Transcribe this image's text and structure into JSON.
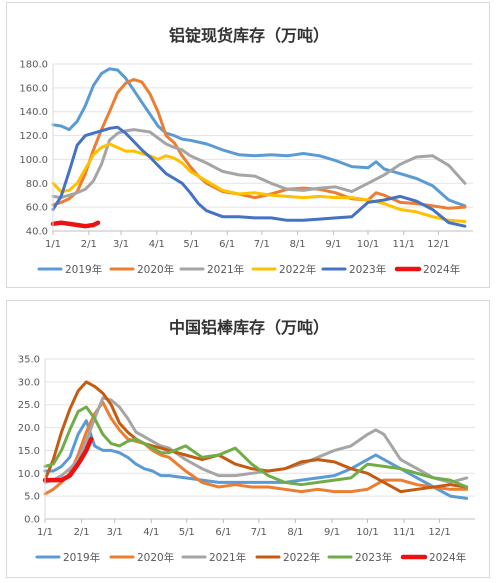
{
  "colors": {
    "2019": "#5b9bd5",
    "2020": "#ed7d31",
    "2021": "#a5a5a5",
    "2022": "#ffc000",
    "2023": "#4472c4",
    "2023b": "#70ad47",
    "2024": "#ee1111",
    "2022b": "#c55a11"
  },
  "chart_data": [
    {
      "type": "line",
      "title": "铝锭现货库存（万吨）",
      "xlabel": "",
      "ylabel": "",
      "x_ticks": [
        "1/1",
        "2/1",
        "3/1",
        "4/1",
        "5/1",
        "6/1",
        "7/1",
        "8/1",
        "9/1",
        "10/1",
        "11/1",
        "12/1"
      ],
      "y_ticks": [
        "40.0",
        "60.0",
        "80.0",
        "100.0",
        "120.0",
        "140.0",
        "160.0",
        "180.0"
      ],
      "ylim": [
        40,
        180
      ],
      "grid": true,
      "legend": "bottom",
      "series": [
        {
          "name": "2019年",
          "color_key": "2019",
          "x": [
            1,
            8,
            15,
            22,
            29,
            36,
            43,
            50,
            57,
            64,
            71,
            78,
            85,
            92,
            99,
            106,
            113,
            120,
            134,
            148,
            162,
            176,
            190,
            204,
            218,
            232,
            246,
            260,
            274,
            281,
            288,
            302,
            316,
            330,
            344,
            358
          ],
          "values": [
            129,
            128,
            125,
            132,
            145,
            162,
            172,
            176,
            175,
            168,
            158,
            148,
            138,
            128,
            122,
            120,
            117,
            116,
            113,
            108,
            104,
            103,
            104,
            103,
            105,
            103,
            99,
            94,
            93,
            98,
            92,
            88,
            84,
            78,
            66,
            61
          ]
        },
        {
          "name": "2020年",
          "color_key": "2020",
          "x": [
            1,
            8,
            15,
            22,
            29,
            36,
            43,
            50,
            57,
            64,
            71,
            78,
            85,
            92,
            99,
            106,
            113,
            120,
            127,
            134,
            148,
            162,
            176,
            190,
            204,
            218,
            232,
            246,
            260,
            274,
            281,
            288,
            302,
            316,
            330,
            344,
            358
          ],
          "values": [
            62,
            64,
            67,
            73,
            88,
            108,
            125,
            140,
            156,
            164,
            167,
            165,
            155,
            140,
            120,
            114,
            103,
            94,
            86,
            80,
            73,
            71,
            68,
            71,
            75,
            76,
            75,
            72,
            67,
            66,
            72,
            70,
            64,
            63,
            61,
            59,
            60
          ]
        },
        {
          "name": "2021年",
          "color_key": "2021",
          "x": [
            1,
            8,
            15,
            22,
            29,
            36,
            43,
            50,
            57,
            64,
            71,
            78,
            85,
            92,
            99,
            106,
            113,
            120,
            134,
            148,
            162,
            176,
            190,
            204,
            218,
            232,
            246,
            260,
            274,
            288,
            302,
            316,
            330,
            344,
            358
          ],
          "values": [
            69,
            68,
            70,
            72,
            75,
            82,
            96,
            116,
            122,
            124,
            125,
            124,
            123,
            118,
            113,
            110,
            108,
            103,
            97,
            90,
            87,
            86,
            80,
            75,
            74,
            76,
            77,
            73,
            80,
            87,
            96,
            102,
            103,
            95,
            80
          ]
        },
        {
          "name": "2022年",
          "color_key": "2022",
          "x": [
            1,
            8,
            15,
            22,
            29,
            36,
            43,
            50,
            57,
            64,
            71,
            78,
            85,
            92,
            99,
            106,
            113,
            120,
            134,
            148,
            162,
            176,
            190,
            204,
            218,
            232,
            246,
            260,
            274,
            288,
            302,
            316,
            330,
            344,
            358
          ],
          "values": [
            80,
            73,
            74,
            80,
            92,
            104,
            110,
            113,
            110,
            107,
            107,
            105,
            103,
            100,
            103,
            101,
            97,
            90,
            82,
            74,
            71,
            72,
            70,
            69,
            68,
            69,
            68,
            68,
            66,
            63,
            58,
            56,
            52,
            49,
            48
          ]
        },
        {
          "name": "2023年",
          "color_key": "2023",
          "x": [
            1,
            8,
            15,
            22,
            29,
            36,
            43,
            50,
            57,
            64,
            71,
            78,
            85,
            92,
            99,
            106,
            113,
            120,
            127,
            134,
            148,
            162,
            176,
            190,
            204,
            218,
            232,
            246,
            260,
            274,
            288,
            302,
            316,
            330,
            344,
            358
          ],
          "values": [
            58,
            69,
            90,
            112,
            120,
            122,
            124,
            126,
            127,
            122,
            115,
            108,
            102,
            95,
            88,
            84,
            80,
            72,
            63,
            57,
            52,
            52,
            51,
            51,
            49,
            49,
            50,
            51,
            52,
            64,
            66,
            69,
            65,
            58,
            47,
            44
          ]
        },
        {
          "name": "2024年",
          "color_key": "2024",
          "x": [
            1,
            8,
            15,
            22,
            29,
            36,
            40
          ],
          "values": [
            46,
            47,
            46,
            45,
            44,
            45,
            47
          ]
        }
      ]
    },
    {
      "type": "line",
      "title": "中国铝棒库存（万吨）",
      "xlabel": "",
      "ylabel": "",
      "x_ticks": [
        "1/1",
        "2/1",
        "3/1",
        "4/1",
        "5/1",
        "6/1",
        "7/1",
        "8/1",
        "9/1",
        "10/1",
        "11/1",
        "12/1"
      ],
      "y_ticks": [
        "0.0",
        "5.0",
        "10.0",
        "15.0",
        "20.0",
        "25.0",
        "30.0",
        "35.0"
      ],
      "ylim": [
        0,
        35
      ],
      "grid": true,
      "legend": "bottom",
      "series": [
        {
          "name": "2019年",
          "color_key": "2019",
          "x": [
            1,
            8,
            15,
            22,
            29,
            36,
            43,
            50,
            57,
            64,
            71,
            78,
            85,
            92,
            99,
            106,
            120,
            134,
            148,
            162,
            176,
            190,
            204,
            218,
            232,
            246,
            260,
            274,
            281,
            288,
            302,
            316,
            330,
            344,
            358
          ],
          "values": [
            10.5,
            10.5,
            11.5,
            13.5,
            18.5,
            21.5,
            16,
            15,
            15,
            14.5,
            13.5,
            12,
            11,
            10.5,
            9.5,
            9.5,
            9,
            8.5,
            8,
            8,
            8,
            8,
            8,
            8.5,
            9,
            9.5,
            11,
            13,
            14,
            13,
            11,
            9,
            7,
            5,
            4.5
          ]
        },
        {
          "name": "2020年",
          "color_key": "2020",
          "x": [
            1,
            8,
            15,
            22,
            29,
            36,
            43,
            50,
            57,
            64,
            71,
            78,
            85,
            92,
            99,
            106,
            120,
            134,
            148,
            162,
            176,
            190,
            204,
            218,
            232,
            246,
            260,
            274,
            288,
            302,
            316,
            330,
            344,
            358
          ],
          "values": [
            5.5,
            6.5,
            8,
            10,
            14,
            19,
            23,
            25.5,
            22,
            19.5,
            17.5,
            17,
            16.5,
            15,
            14,
            13.5,
            10.5,
            8,
            7,
            7.5,
            7,
            7,
            6.5,
            6,
            6.5,
            6,
            6,
            6.5,
            8.5,
            8.5,
            7.5,
            7,
            6.5,
            6.5
          ]
        },
        {
          "name": "2021年",
          "color_key": "2021",
          "x": [
            1,
            8,
            15,
            22,
            29,
            36,
            43,
            50,
            57,
            64,
            71,
            78,
            85,
            92,
            99,
            106,
            120,
            134,
            148,
            162,
            176,
            190,
            204,
            218,
            232,
            246,
            260,
            274,
            281,
            288,
            302,
            316,
            330,
            344,
            358
          ],
          "values": [
            8,
            8.5,
            9.5,
            11,
            13,
            17,
            22,
            26.5,
            26,
            24.5,
            22,
            19,
            18,
            17,
            16,
            15.5,
            13,
            11,
            9.5,
            9.5,
            10,
            10.5,
            11,
            12,
            13.5,
            15,
            16,
            18.5,
            19.5,
            18.5,
            13,
            11,
            9,
            8,
            9
          ]
        },
        {
          "name": "2022年",
          "color_key": "2022b",
          "x": [
            1,
            8,
            15,
            22,
            29,
            36,
            43,
            50,
            57,
            64,
            71,
            78,
            85,
            92,
            99,
            106,
            120,
            134,
            148,
            162,
            176,
            190,
            204,
            218,
            232,
            246,
            260,
            274,
            288,
            302,
            316,
            330,
            344,
            358
          ],
          "values": [
            8.5,
            13,
            19,
            24,
            28,
            30,
            29,
            27.5,
            25,
            21,
            19,
            17.5,
            16.5,
            16,
            15.5,
            15,
            14,
            13,
            14,
            12,
            11,
            10.5,
            11,
            12.5,
            13,
            12.5,
            11,
            10,
            8,
            6,
            6.5,
            7,
            7.5,
            7
          ]
        },
        {
          "name": "2023年",
          "color_key": "2023b",
          "x": [
            1,
            8,
            15,
            22,
            29,
            36,
            43,
            50,
            57,
            64,
            71,
            78,
            85,
            92,
            99,
            106,
            120,
            134,
            148,
            162,
            176,
            190,
            204,
            218,
            232,
            246,
            260,
            274,
            288,
            302,
            316,
            330,
            344,
            358
          ],
          "values": [
            11.5,
            12,
            15,
            19.5,
            23.5,
            24.5,
            22,
            18.5,
            16.5,
            16,
            17,
            17.5,
            16.5,
            15.5,
            14.5,
            14.5,
            16,
            13.5,
            14,
            15.5,
            12,
            9.5,
            8,
            7.5,
            8,
            8.5,
            9,
            12,
            11.5,
            11,
            10,
            9,
            8.5,
            7
          ]
        },
        {
          "name": "2024年",
          "color_key": "2024",
          "x": [
            1,
            8,
            15,
            22,
            29,
            36,
            40
          ],
          "values": [
            8.5,
            8.5,
            8.5,
            9.5,
            12,
            15,
            17.5
          ]
        }
      ]
    }
  ]
}
